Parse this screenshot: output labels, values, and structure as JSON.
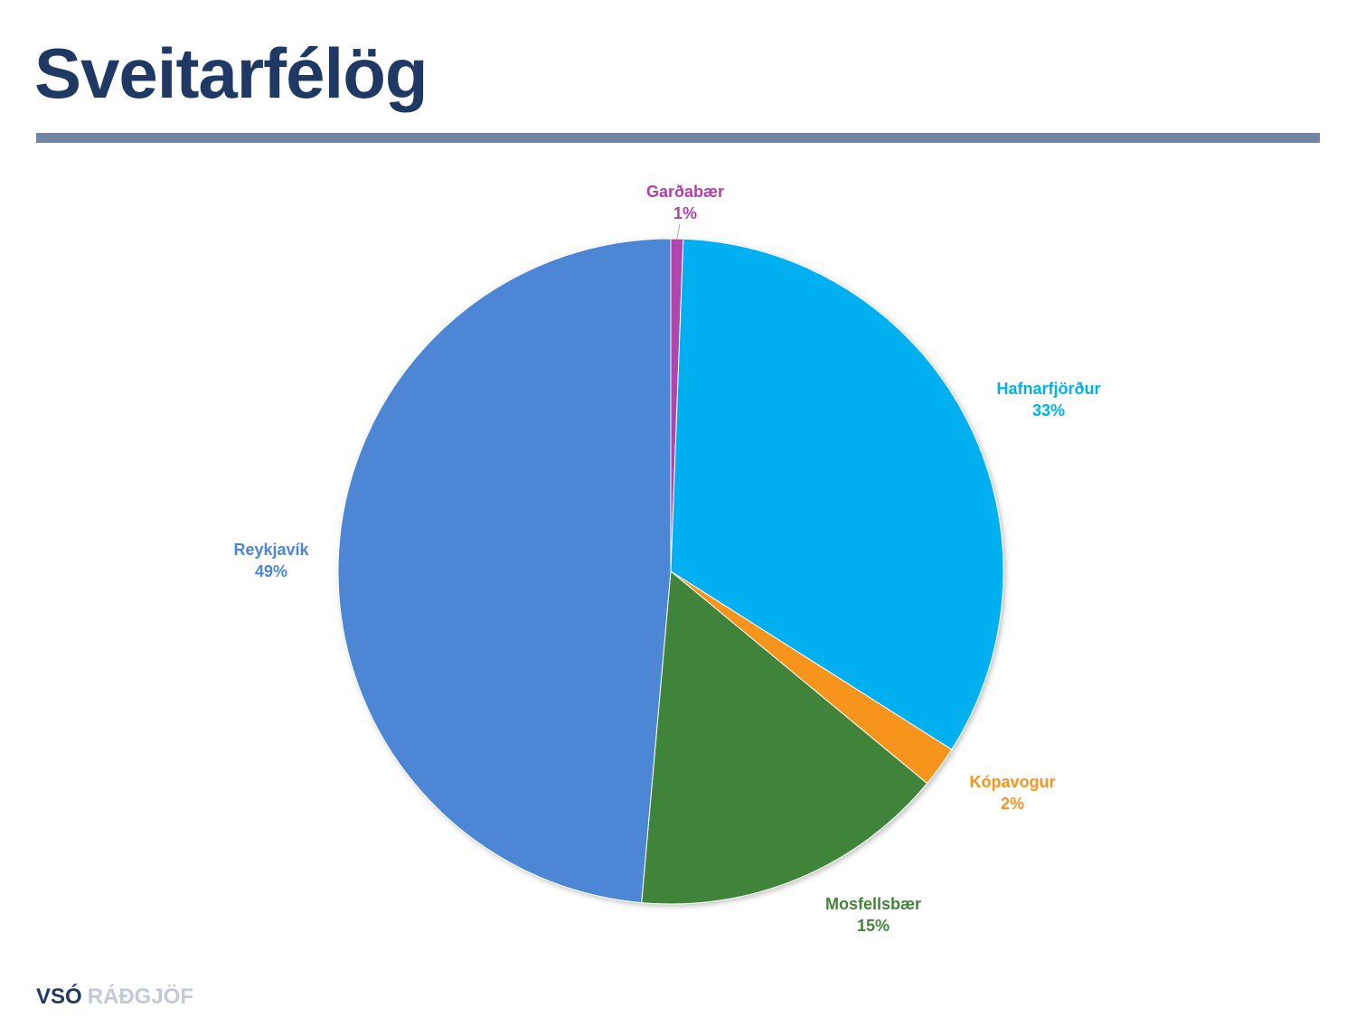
{
  "slide": {
    "title": "Sveitarfélög"
  },
  "logo": {
    "primary": "VSÓ",
    "secondary": "RÁÐGJÖF"
  },
  "chart_data": {
    "type": "pie",
    "title": "",
    "start_angle_deg": 0,
    "slices": [
      {
        "label": "Garðabær",
        "pct_label": "1%",
        "value": 0.6,
        "color": "#b144b0"
      },
      {
        "label": "Hafnarfjörður",
        "pct_label": "33%",
        "value": 33.4,
        "color": "#00b0f0"
      },
      {
        "label": "Kópavogur",
        "pct_label": "2%",
        "value": 2.0,
        "color": "#f7941d"
      },
      {
        "label": "Mosfellsbær",
        "pct_label": "15%",
        "value": 15.4,
        "color": "#41843a"
      },
      {
        "label": "Reykjavík",
        "pct_label": "49%",
        "value": 48.6,
        "color": "#4d86d4"
      }
    ]
  }
}
